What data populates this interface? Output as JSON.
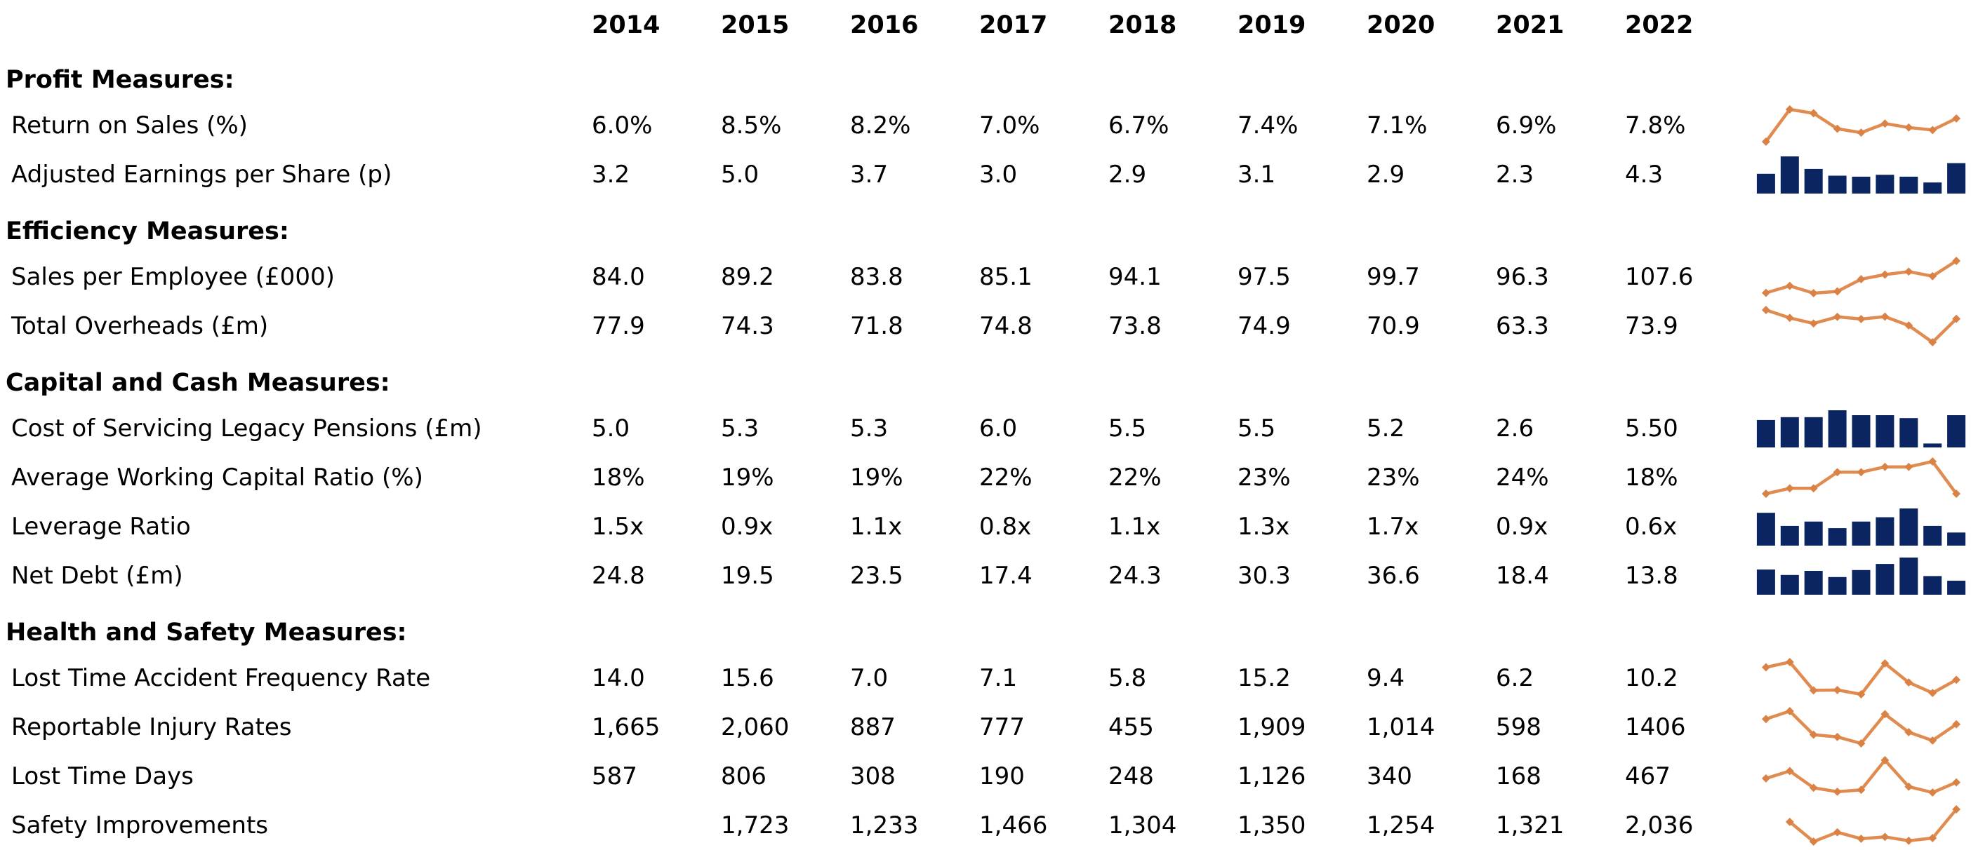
{
  "colors": {
    "background": "#ffffff",
    "text": "#000000",
    "sparkline_line": "#E08C51",
    "sparkline_marker": "#DA8245",
    "sparkline_bar": "#0B2462"
  },
  "chart_data": {
    "type": "table",
    "title": "",
    "columns": [
      "2014",
      "2015",
      "2016",
      "2017",
      "2018",
      "2019",
      "2020",
      "2021",
      "2022"
    ],
    "legend_position": "none",
    "grid": false,
    "sections": [
      {
        "title": "Profit Measures:",
        "rows": [
          {
            "label": "Return on Sales (%)",
            "display": [
              "6.0%",
              "8.5%",
              "8.2%",
              "7.0%",
              "6.7%",
              "7.4%",
              "7.1%",
              "6.9%",
              "7.8%"
            ],
            "values": [
              6.0,
              8.5,
              8.2,
              7.0,
              6.7,
              7.4,
              7.1,
              6.9,
              7.8
            ],
            "sparkline": "line",
            "axis_range": [
              6.0,
              8.5
            ]
          },
          {
            "label": "Adjusted Earnings per Share (p)",
            "display": [
              "3.2",
              "5.0",
              "3.7",
              "3.0",
              "2.9",
              "3.1",
              "2.9",
              "2.3",
              "4.3"
            ],
            "values": [
              3.2,
              5.0,
              3.7,
              3.0,
              2.9,
              3.1,
              2.9,
              2.3,
              4.3
            ],
            "sparkline": "bar",
            "axis_range": [
              1.15,
              5.0
            ]
          }
        ]
      },
      {
        "title": "Efficiency Measures:",
        "rows": [
          {
            "label": "Sales per Employee (£000)",
            "display": [
              "84.0",
              "89.2",
              "83.8",
              "85.1",
              "94.1",
              "97.5",
              "99.7",
              "96.3",
              "107.6"
            ],
            "values": [
              84.0,
              89.2,
              83.8,
              85.1,
              94.1,
              97.5,
              99.7,
              96.3,
              107.6
            ],
            "sparkline": "line",
            "axis_range": [
              83.8,
              107.6
            ]
          },
          {
            "label": "Total Overheads (£m)",
            "display": [
              "77.9",
              "74.3",
              "71.8",
              "74.8",
              "73.8",
              "74.9",
              "70.9",
              "63.3",
              "73.9"
            ],
            "values": [
              77.9,
              74.3,
              71.8,
              74.8,
              73.8,
              74.9,
              70.9,
              63.3,
              73.9
            ],
            "sparkline": "line",
            "axis_range": [
              63.3,
              77.9
            ]
          }
        ]
      },
      {
        "title": "Capital and Cash Measures:",
        "rows": [
          {
            "label": "Cost of Servicing Legacy Pensions (£m)",
            "display": [
              "5.0",
              "5.3",
              "5.3",
              "6.0",
              "5.5",
              "5.5",
              "5.2",
              "2.6",
              "5.50"
            ],
            "values": [
              5.0,
              5.3,
              5.3,
              6.0,
              5.5,
              5.5,
              5.2,
              2.6,
              5.5
            ],
            "sparkline": "bar",
            "axis_range": [
              2.2,
              6.0
            ]
          },
          {
            "label": "Average Working Capital Ratio (%)",
            "display": [
              "18%",
              "19%",
              "19%",
              "22%",
              "22%",
              "23%",
              "23%",
              "24%",
              "18%"
            ],
            "values": [
              18,
              19,
              19,
              22,
              22,
              23,
              23,
              24,
              18
            ],
            "sparkline": "line",
            "axis_range": [
              18,
              24
            ]
          },
          {
            "label": "Leverage Ratio",
            "display": [
              "1.5x",
              "0.9x",
              "1.1x",
              "0.8x",
              "1.1x",
              "1.3x",
              "1.7x",
              "0.9x",
              "0.6x"
            ],
            "values": [
              1.5,
              0.9,
              1.1,
              0.8,
              1.1,
              1.3,
              1.7,
              0.9,
              0.6
            ],
            "sparkline": "bar",
            "axis_range": [
              0,
              1.7
            ]
          },
          {
            "label": "Net Debt (£m)",
            "display": [
              "24.8",
              "19.5",
              "23.5",
              "17.4",
              "24.3",
              "30.3",
              "36.6",
              "18.4",
              "13.8"
            ],
            "values": [
              24.8,
              19.5,
              23.5,
              17.4,
              24.3,
              30.3,
              36.6,
              18.4,
              13.8
            ],
            "sparkline": "bar",
            "axis_range": [
              0,
              36.6
            ]
          }
        ]
      },
      {
        "title": "Health and Safety Measures:",
        "rows": [
          {
            "label": "Lost Time Accident Frequency Rate",
            "display": [
              "14.0",
              "15.6",
              "7.0",
              "7.1",
              "5.8",
              "15.2",
              "9.4",
              "6.2",
              "10.2"
            ],
            "values": [
              14.0,
              15.6,
              7.0,
              7.1,
              5.8,
              15.2,
              9.4,
              6.2,
              10.2
            ],
            "sparkline": "line",
            "axis_range": [
              5.8,
              15.6
            ]
          },
          {
            "label": "Reportable Injury Rates",
            "display": [
              "1,665",
              "2,060",
              "887",
              "777",
              "455",
              "1,909",
              "1,014",
              "598",
              "1406"
            ],
            "values": [
              1665,
              2060,
              887,
              777,
              455,
              1909,
              1014,
              598,
              1406
            ],
            "sparkline": "line",
            "axis_range": [
              455,
              2060
            ]
          },
          {
            "label": "Lost Time Days",
            "display": [
              "587",
              "806",
              "308",
              "190",
              "248",
              "1,126",
              "340",
              "168",
              "467"
            ],
            "values": [
              587,
              806,
              308,
              190,
              248,
              1126,
              340,
              168,
              467
            ],
            "sparkline": "line",
            "axis_range": [
              168,
              1126
            ]
          },
          {
            "label": "Safety Improvements",
            "display": [
              "",
              "1,723",
              "1,233",
              "1,466",
              "1,304",
              "1,350",
              "1,254",
              "1,321",
              "2,036"
            ],
            "values": [
              null,
              1723,
              1233,
              1466,
              1304,
              1350,
              1254,
              1321,
              2036
            ],
            "sparkline": "line",
            "axis_range": [
              1233,
              2036
            ]
          }
        ]
      }
    ]
  }
}
